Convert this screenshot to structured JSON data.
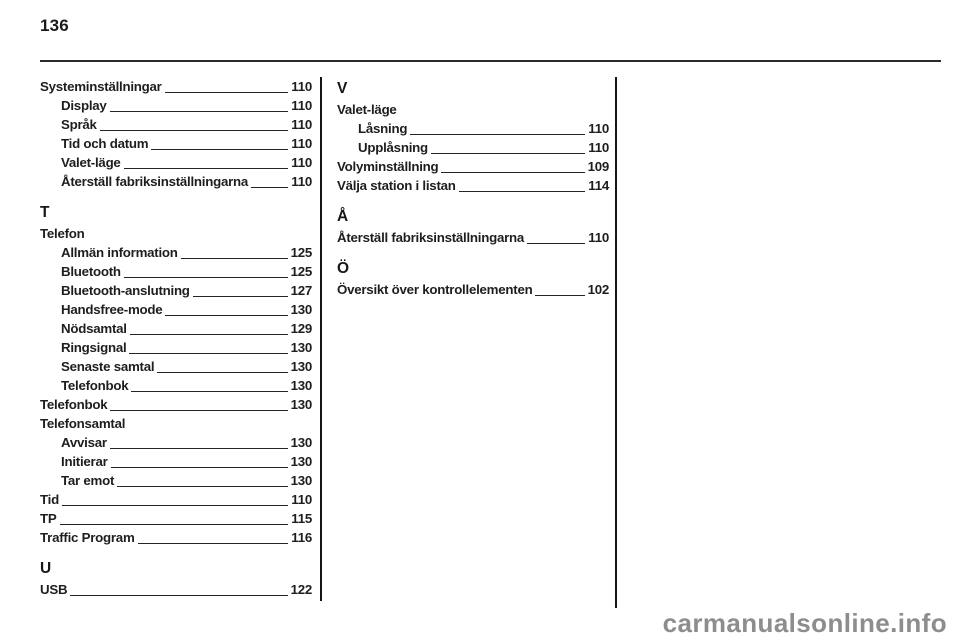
{
  "page": {
    "number": "136"
  },
  "colors": {
    "text": "#1e1e1e",
    "rule": "#2b2b2b",
    "divider": "#161616",
    "watermark": "#8d8d8d"
  },
  "index": {
    "columns": [
      {
        "blocks": [
          {
            "letter": null,
            "entries": [
              {
                "label": "Systeminställningar",
                "page": "110",
                "indent": 0
              },
              {
                "label": "Display",
                "page": "110",
                "indent": 1
              },
              {
                "label": "Språk",
                "page": "110",
                "indent": 1
              },
              {
                "label": "Tid och datum",
                "page": "110",
                "indent": 1
              },
              {
                "label": "Valet-läge",
                "page": "110",
                "indent": 1
              },
              {
                "label": "Återställ fabriksinställningarna",
                "page": "110",
                "indent": 1
              }
            ]
          },
          {
            "letter": "T",
            "entries": [
              {
                "label": "Telefon",
                "group": true,
                "indent": 0
              },
              {
                "label": "Allmän information",
                "page": "125",
                "indent": 1
              },
              {
                "label": "Bluetooth",
                "page": "125",
                "indent": 1
              },
              {
                "label": "Bluetooth-anslutning",
                "page": "127",
                "indent": 1
              },
              {
                "label": "Handsfree-mode",
                "page": "130",
                "indent": 1
              },
              {
                "label": "Nödsamtal",
                "page": "129",
                "indent": 1
              },
              {
                "label": "Ringsignal",
                "page": "130",
                "indent": 1
              },
              {
                "label": "Senaste samtal",
                "page": "130",
                "indent": 1
              },
              {
                "label": "Telefonbok",
                "page": "130",
                "indent": 1
              },
              {
                "label": "Telefonbok",
                "page": "130",
                "indent": 0
              },
              {
                "label": "Telefonsamtal",
                "group": true,
                "indent": 0
              },
              {
                "label": "Avvisar",
                "page": "130",
                "indent": 1
              },
              {
                "label": "Initierar",
                "page": "130",
                "indent": 1
              },
              {
                "label": "Tar emot",
                "page": "130",
                "indent": 1
              },
              {
                "label": "Tid",
                "page": "110",
                "indent": 0
              },
              {
                "label": "TP",
                "page": "115",
                "indent": 0
              },
              {
                "label": "Traffic Program",
                "page": "116",
                "indent": 0
              }
            ]
          },
          {
            "letter": "U",
            "entries": [
              {
                "label": "USB",
                "page": "122",
                "indent": 0
              }
            ]
          }
        ]
      },
      {
        "blocks": [
          {
            "letter": "V",
            "entries": [
              {
                "label": "Valet-läge",
                "group": true,
                "indent": 0
              },
              {
                "label": "Låsning",
                "page": "110",
                "indent": 1
              },
              {
                "label": "Upplåsning",
                "page": "110",
                "indent": 1
              },
              {
                "label": "Volyminställning",
                "page": "109",
                "indent": 0
              },
              {
                "label": "Välja station i listan",
                "page": "114",
                "indent": 0
              }
            ]
          },
          {
            "letter": "Å",
            "entries": [
              {
                "label": "Återställ fabriksinställningarna",
                "page": "110",
                "indent": 0
              }
            ]
          },
          {
            "letter": "Ö",
            "entries": [
              {
                "label": "Översikt över kontrollelementen",
                "page": "102",
                "indent": 0
              }
            ]
          }
        ]
      },
      {
        "blocks": []
      }
    ]
  },
  "watermark": {
    "text": "carmanualsonline.info"
  }
}
